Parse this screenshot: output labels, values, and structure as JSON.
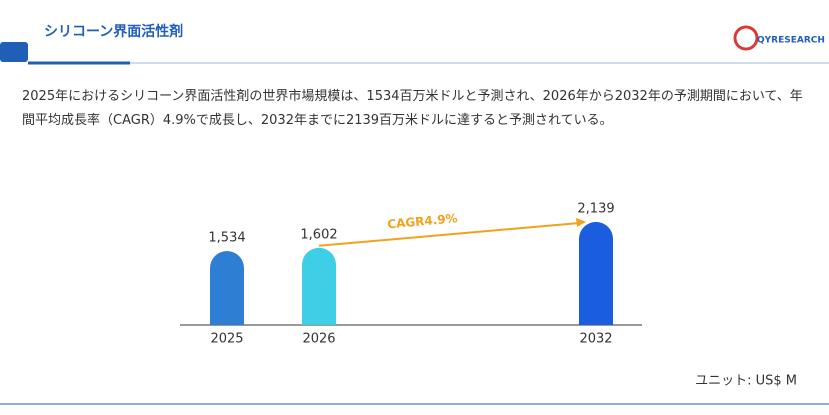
{
  "chart_data": {
    "type": "bar",
    "title": "シリコーン界面活性剤",
    "logo": "QYRESEARCH",
    "subtitle": "2025年におけるシリコーン界面活性剤の世界市場規模は、1534百万米ドルと予測され、2026年から2032年の予測期間において、年間平均成長率（CAGR）4.9%で成長し、2032年までに2139百万米ドルに達すると予測されている。",
    "categories": [
      "2025",
      "2026",
      "2032"
    ],
    "values": [
      1534,
      1602,
      2139
    ],
    "value_labels": [
      "1,534",
      "1,602",
      "2,139"
    ],
    "colors": [
      "#2e7fd4",
      "#3ecfe6",
      "#1a5edf"
    ],
    "annotation": "CAGR4.9%",
    "annotation_color": "#f0a21c",
    "unit_label": "ユニット: US$ M"
  }
}
